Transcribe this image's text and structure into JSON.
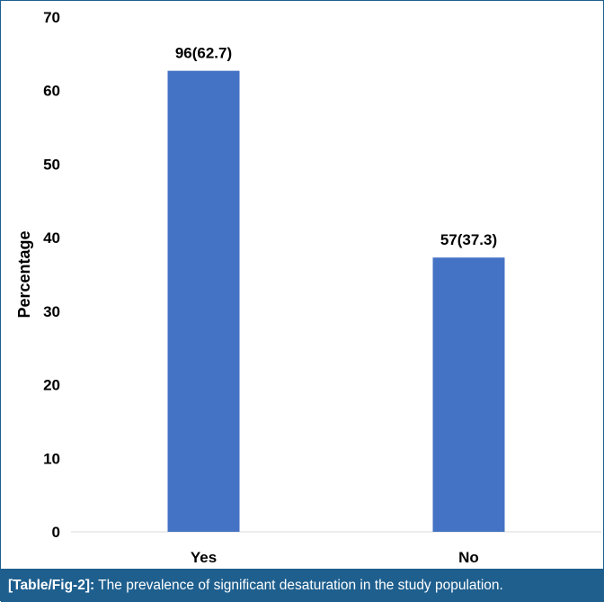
{
  "chart_data": {
    "type": "bar",
    "categories": [
      "Yes",
      "No"
    ],
    "values": [
      62.7,
      37.3
    ],
    "data_labels": [
      "96(62.7)",
      "57(37.3)"
    ],
    "ylabel": "Percentage",
    "xlabel": "",
    "ylim": [
      0,
      70
    ],
    "yticks": [
      "0",
      "10",
      "20",
      "30",
      "40",
      "50",
      "60",
      "70"
    ],
    "grid": false,
    "bar_color": "#4472c4"
  },
  "caption": {
    "label": "[Table/Fig-2]:",
    "text": " The prevalence of significant desaturation in the study population."
  },
  "colors": {
    "caption_bg": "#1e5f8e",
    "border": "#1f5f8f"
  }
}
